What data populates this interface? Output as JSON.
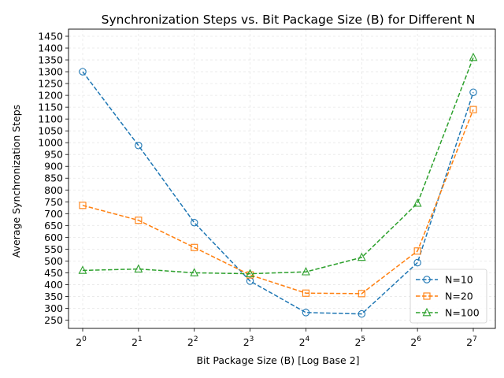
{
  "chart_data": {
    "type": "line",
    "title": "Synchronization Steps vs. Bit Package Size (B) for Different N",
    "xlabel": "Bit Package Size (B) [Log Base 2]",
    "ylabel": "Average Synchronization Steps",
    "x_scale": "log2",
    "x": [
      1,
      2,
      4,
      8,
      16,
      32,
      64,
      128
    ],
    "x_tick_base": "2",
    "x_tick_exponents": [
      "0",
      "1",
      "2",
      "3",
      "4",
      "5",
      "6",
      "7"
    ],
    "y_ticks": [
      250,
      300,
      350,
      400,
      450,
      500,
      550,
      600,
      650,
      700,
      750,
      800,
      850,
      900,
      950,
      1000,
      1050,
      1100,
      1150,
      1200,
      1250,
      1300,
      1350,
      1400,
      1450
    ],
    "ylim": [
      215,
      1480
    ],
    "grid": true,
    "legend_position": "lower-right",
    "series": [
      {
        "name": "N=10",
        "marker": "circle",
        "color": "#1f77b4",
        "values": [
          1300,
          988,
          662,
          415,
          282,
          276,
          493,
          1213
        ]
      },
      {
        "name": "N=20",
        "marker": "square",
        "color": "#ff7f0e",
        "values": [
          735,
          672,
          557,
          441,
          364,
          362,
          542,
          1140
        ]
      },
      {
        "name": "N=100",
        "marker": "triangle",
        "color": "#2ca02c",
        "values": [
          460,
          466,
          450,
          446,
          454,
          515,
          744,
          1360
        ]
      }
    ]
  }
}
